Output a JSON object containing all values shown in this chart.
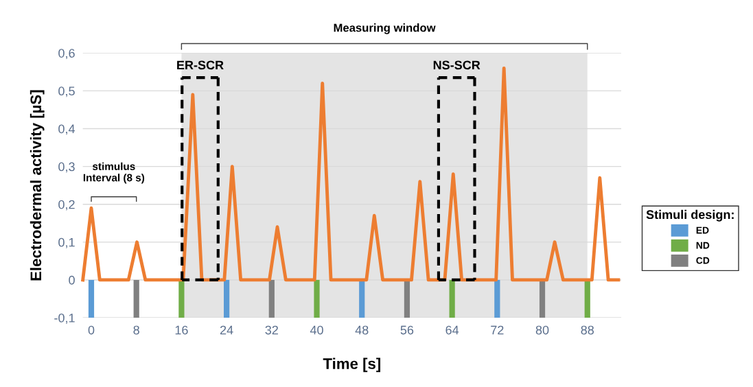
{
  "chart_data": {
    "type": "line",
    "xlabel": "Time [s]",
    "ylabel": "Electrodermal activity [µS]",
    "legend_title": "Stimuli design:",
    "xlim": [
      -1.5,
      94
    ],
    "ylim": [
      -0.1,
      0.6
    ],
    "xticks": [
      0,
      8,
      16,
      24,
      32,
      40,
      48,
      56,
      64,
      72,
      80,
      88
    ],
    "yticks": [
      {
        "value": -0.1,
        "label": "-0,1"
      },
      0,
      {
        "value": 0.1,
        "label": "0,1"
      },
      {
        "value": 0.2,
        "label": "0,2"
      },
      {
        "value": 0.3,
        "label": "0,3"
      },
      {
        "value": 0.4,
        "label": "0,4"
      },
      {
        "value": 0.5,
        "label": "0,5"
      },
      {
        "value": 0.6,
        "label": "0,6"
      }
    ],
    "grid": "y",
    "legend": "right",
    "series": [
      {
        "color": "#ed7d31",
        "x": [
          -1.5,
          0,
          1.5,
          6.6,
          8.1,
          9.6,
          16.3,
          18,
          19.6,
          23.6,
          25,
          26.5,
          31.6,
          33,
          34.5,
          39.6,
          41,
          42.5,
          48.8,
          50.2,
          51.7,
          56.8,
          58.3,
          59.8,
          62.7,
          64.2,
          65.7,
          71.8,
          73.2,
          74.7,
          80.8,
          82.2,
          83.7,
          88.8,
          90.2,
          91.7,
          93.5
        ],
        "values": [
          0,
          0.19,
          0,
          0,
          0.1,
          0,
          0,
          0.49,
          0,
          0,
          0.3,
          0,
          0,
          0.14,
          0,
          0,
          0.52,
          0,
          0,
          0.17,
          0,
          0,
          0.26,
          0,
          0,
          0.28,
          0,
          0,
          0.56,
          0,
          0,
          0.1,
          0,
          0,
          0.27,
          0,
          0
        ]
      },
      {
        "type": "bar",
        "name": "ED",
        "color": "#5b9bd5",
        "x": [
          0,
          24,
          48,
          72
        ],
        "values": [
          -0.1,
          -0.1,
          -0.1,
          -0.1
        ]
      },
      {
        "type": "bar",
        "name": "ND",
        "color": "#70ad47",
        "x": [
          16,
          40,
          64,
          88
        ],
        "values": [
          -0.1,
          -0.1,
          -0.1,
          -0.1
        ]
      },
      {
        "type": "bar",
        "name": "CD",
        "color": "#808080",
        "x": [
          8,
          32,
          56,
          80
        ],
        "values": [
          -0.1,
          -0.1,
          -0.1,
          -0.1
        ]
      }
    ],
    "bands": [
      {
        "axis": "x",
        "from": 16,
        "to": 88,
        "label": "Measuring window",
        "color": "#e4e4e4"
      }
    ],
    "annotations": [
      "stimulus\nInterval (8 s)",
      {
        "text": "ER-SCR",
        "x": 18,
        "y": 0.49
      },
      {
        "text": "NS-SCR",
        "x": 61.6,
        "y": 0
      }
    ]
  }
}
